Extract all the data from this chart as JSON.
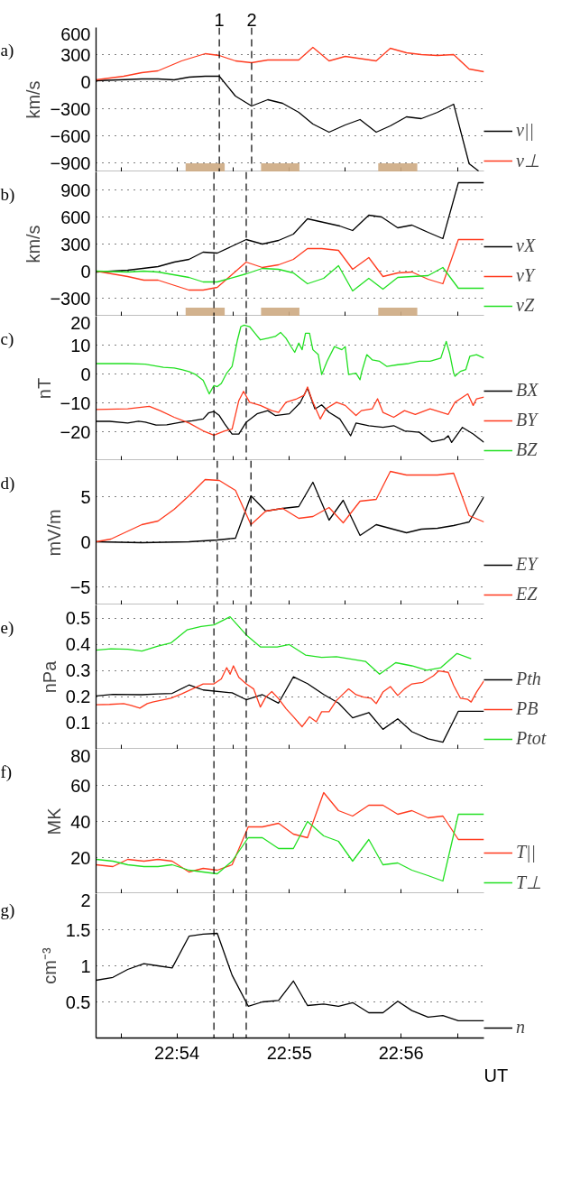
{
  "chart_data": [
    {
      "type": "line",
      "title": "a)",
      "ylabel": "km/s",
      "xlim": [
        22.888,
        22.9456
      ],
      "ylim": [
        -1000,
        600
      ],
      "yticks": [
        600,
        300,
        0,
        -300,
        -600,
        -900
      ],
      "xticks": [
        {
          "value": 22.8917,
          "label": null
        },
        {
          "value": 22.9,
          "label": null
        },
        {
          "value": 22.9083,
          "label": null
        },
        {
          "value": 22.9167,
          "label": null
        },
        {
          "value": 22.925,
          "label": null
        },
        {
          "value": 22.9333,
          "label": null
        },
        {
          "value": 22.9417,
          "label": null
        }
      ],
      "tick_labels": "y",
      "grid": "y",
      "legend": "right",
      "series": [
        {
          "name": "v||",
          "color": "#000000",
          "x": [
            22.888,
            22.8948,
            22.8972,
            22.8996,
            22.9018,
            22.9042,
            22.9063,
            22.9087,
            22.9111,
            22.9135,
            22.9157,
            22.9181,
            22.9202,
            22.9226,
            22.925,
            22.9272,
            22.9296,
            22.9317,
            22.9341,
            22.9363,
            22.9387,
            22.9411,
            22.9434,
            22.9448
          ],
          "values": [
            10,
            30,
            30,
            20,
            50,
            60,
            60,
            -160,
            -270,
            -200,
            -240,
            -340,
            -470,
            -560,
            -480,
            -420,
            -560,
            -490,
            -390,
            -410,
            -340,
            -250,
            -910,
            -990
          ]
        },
        {
          "name": "v⊥",
          "color": "#ff3b1f",
          "x": [
            22.888,
            22.8921,
            22.8948,
            22.8972,
            22.9007,
            22.9042,
            22.9063,
            22.9087,
            22.9111,
            22.9135,
            22.9157,
            22.9181,
            22.9202,
            22.9226,
            22.925,
            22.9296,
            22.9317,
            22.9341,
            22.9363,
            22.9387,
            22.9411,
            22.9434,
            22.9456
          ],
          "values": [
            20,
            60,
            100,
            120,
            230,
            310,
            290,
            230,
            210,
            240,
            240,
            240,
            380,
            230,
            280,
            230,
            370,
            320,
            300,
            290,
            300,
            140,
            110
          ]
        }
      ],
      "ref_lines": [
        {
          "axis": "x",
          "value": 22.9063,
          "line_style": "dashed"
        },
        {
          "axis": "x",
          "value": 22.9111,
          "line_style": "dashed"
        }
      ],
      "annotations": [
        "1",
        "2"
      ],
      "bands": [
        {
          "axis": "x",
          "from": 22.9013,
          "to": 22.9071,
          "color": "#cdaa82"
        },
        {
          "axis": "x",
          "from": 22.9125,
          "to": 22.9182,
          "color": "#cdaa82"
        },
        {
          "axis": "x",
          "from": 22.9299,
          "to": 22.9357,
          "color": "#cdaa82"
        }
      ]
    },
    {
      "type": "line",
      "title": "b)",
      "ylabel": "km/s",
      "xlim": [
        22.888,
        22.9456
      ],
      "ylim": [
        -500,
        1100
      ],
      "yticks": [
        900,
        600,
        300,
        0,
        -300
      ],
      "xticks": [
        {
          "value": 22.8917,
          "label": null
        },
        {
          "value": 22.9,
          "label": null
        },
        {
          "value": 22.9083,
          "label": null
        },
        {
          "value": 22.9167,
          "label": null
        },
        {
          "value": 22.925,
          "label": null
        },
        {
          "value": 22.9333,
          "label": null
        },
        {
          "value": 22.9417,
          "label": null
        }
      ],
      "tick_labels": "y",
      "grid": "y",
      "legend": "right",
      "series": [
        {
          "name": "vX",
          "color": "#000000",
          "x": [
            22.888,
            22.8927,
            22.8972,
            22.8996,
            22.9018,
            22.9039,
            22.906,
            22.9103,
            22.9127,
            22.9151,
            22.9173,
            22.9194,
            22.9218,
            22.9242,
            22.9261,
            22.9285,
            22.9304,
            22.9328,
            22.9349,
            22.9373,
            22.9395,
            22.9418,
            22.9456
          ],
          "values": [
            -10,
            10,
            50,
            100,
            130,
            210,
            200,
            350,
            300,
            340,
            410,
            580,
            540,
            500,
            450,
            620,
            600,
            480,
            510,
            430,
            360,
            980,
            980
          ]
        },
        {
          "name": "vY",
          "color": "#ff3b1f",
          "x": [
            22.888,
            22.8927,
            22.8951,
            22.8972,
            22.9018,
            22.9039,
            22.906,
            22.9103,
            22.9127,
            22.9151,
            22.9173,
            22.9194,
            22.9215,
            22.924,
            22.9261,
            22.9285,
            22.9306,
            22.9328,
            22.9349,
            22.9373,
            22.9395,
            22.9418,
            22.9456
          ],
          "values": [
            0,
            -60,
            -100,
            -100,
            -210,
            -210,
            -180,
            100,
            40,
            70,
            130,
            250,
            250,
            230,
            20,
            150,
            -60,
            -20,
            -10,
            -90,
            -140,
            350,
            350
          ]
        },
        {
          "name": "vZ",
          "color": "#22e022",
          "x": [
            22.888,
            22.8927,
            22.8951,
            22.8972,
            22.9018,
            22.9039,
            22.906,
            22.9103,
            22.9127,
            22.9151,
            22.9173,
            22.9194,
            22.9218,
            22.924,
            22.9261,
            22.9285,
            22.9306,
            22.9328,
            22.9349,
            22.9373,
            22.9395,
            22.9418,
            22.9456
          ],
          "values": [
            0,
            -10,
            0,
            -10,
            -70,
            -120,
            -120,
            -30,
            30,
            20,
            -20,
            -140,
            -80,
            60,
            -220,
            -80,
            -200,
            -70,
            -60,
            -50,
            40,
            -190,
            -190
          ]
        }
      ],
      "ref_lines": [
        {
          "axis": "x",
          "value": 22.9055,
          "line_style": "dashed"
        },
        {
          "axis": "x",
          "value": 22.9103,
          "line_style": "dashed"
        }
      ],
      "bands": [
        {
          "axis": "x",
          "from": 22.9013,
          "to": 22.9071,
          "color": "#cdaa82"
        },
        {
          "axis": "x",
          "from": 22.9125,
          "to": 22.9182,
          "color": "#cdaa82"
        },
        {
          "axis": "x",
          "from": 22.9299,
          "to": 22.9357,
          "color": "#cdaa82"
        }
      ]
    },
    {
      "type": "line",
      "title": "c)",
      "ylabel": "nT",
      "xlim": [
        22.888,
        22.9456
      ],
      "ylim": [
        -30,
        20
      ],
      "yticks": [
        20,
        10,
        0,
        -10,
        -20
      ],
      "xticks": [
        {
          "value": 22.8917,
          "label": null
        },
        {
          "value": 22.9,
          "label": null
        },
        {
          "value": 22.9083,
          "label": null
        },
        {
          "value": 22.9167,
          "label": null
        },
        {
          "value": 22.925,
          "label": null
        },
        {
          "value": 22.9333,
          "label": null
        },
        {
          "value": 22.9417,
          "label": null
        }
      ],
      "tick_labels": "y",
      "grid": "y",
      "legend": "right",
      "series": [
        {
          "name": "BX",
          "color": "#000000",
          "x": [
            22.888,
            22.89,
            22.8927,
            22.8943,
            22.8953,
            22.8969,
            22.8985,
            22.9007,
            22.9023,
            22.9039,
            22.9047,
            22.9055,
            22.9063,
            22.9071,
            22.9082,
            22.9092,
            22.9103,
            22.9119,
            22.9135,
            22.9146,
            22.9167,
            22.9183,
            22.9194,
            22.9205,
            22.9215,
            22.9226,
            22.9242,
            22.9258,
            22.9266,
            22.9285,
            22.9306,
            22.9322,
            22.9338,
            22.936,
            22.9379,
            22.9397,
            22.9403,
            22.9408,
            22.9424,
            22.944,
            22.9456
          ],
          "values": [
            -16.4,
            -16.4,
            -17,
            -16.4,
            -16.7,
            -17.7,
            -17.6,
            -16.7,
            -16.2,
            -15.6,
            -13.5,
            -13,
            -14.4,
            -17.3,
            -20.8,
            -20.8,
            -16.7,
            -13.8,
            -12.7,
            -14.4,
            -13.8,
            -10,
            -4.9,
            -12.1,
            -10.7,
            -13.3,
            -15.6,
            -21.4,
            -17,
            -17.9,
            -18.5,
            -17.9,
            -19.7,
            -20.2,
            -23.5,
            -22.6,
            -21.4,
            -23.7,
            -18.5,
            -20.8,
            -23.7
          ]
        },
        {
          "name": "BY",
          "color": "#ff3b1f",
          "x": [
            22.888,
            22.8927,
            22.8959,
            22.8975,
            22.8996,
            22.9018,
            22.9039,
            22.9055,
            22.9071,
            22.9082,
            22.9092,
            22.9099,
            22.9108,
            22.9124,
            22.9141,
            22.9151,
            22.9162,
            22.9178,
            22.9189,
            22.9194,
            22.9202,
            22.9213,
            22.9221,
            22.9237,
            22.925,
            22.9266,
            22.9274,
            22.929,
            22.9298,
            22.9306,
            22.9322,
            22.9338,
            22.9354,
            22.9376,
            22.9403,
            22.9413,
            22.9432,
            22.944,
            22.9445,
            22.9456
          ],
          "values": [
            -12.3,
            -12.1,
            -11.2,
            -12.7,
            -15,
            -17,
            -19.7,
            -21.2,
            -19.7,
            -19.1,
            -9.2,
            -6,
            -9.8,
            -10.9,
            -12.7,
            -13.3,
            -9.8,
            -8.6,
            -7.4,
            -4.5,
            -9.8,
            -15.6,
            -12.1,
            -9.8,
            -10.9,
            -14.4,
            -12.7,
            -12.1,
            -8.6,
            -13.3,
            -15,
            -12.7,
            -14,
            -12.1,
            -14,
            -9.8,
            -6.9,
            -10.9,
            -8.6,
            -8
          ]
        },
        {
          "name": "BZ",
          "color": "#22e022",
          "x": [
            22.888,
            22.8927,
            22.8953,
            22.898,
            22.8996,
            22.9007,
            22.9018,
            22.9028,
            22.9039,
            22.9048,
            22.9055,
            22.906,
            22.9066,
            22.9074,
            22.9082,
            22.909,
            22.9095,
            22.91,
            22.9108,
            22.9116,
            22.9124,
            22.9135,
            22.9146,
            22.9154,
            22.9162,
            22.917,
            22.9175,
            22.9181,
            22.9186,
            22.9191,
            22.9197,
            22.9202,
            22.921,
            22.9215,
            22.9223,
            22.9234,
            22.9245,
            22.925,
            22.9255,
            22.9266,
            22.9272,
            22.9274,
            22.9282,
            22.929,
            22.9301,
            22.9312,
            22.9328,
            22.9344,
            22.936,
            22.9376,
            22.9392,
            22.94,
            22.9405,
            22.9411,
            22.9413,
            22.9421,
            22.9429,
            22.9435,
            22.9445,
            22.9456
          ],
          "values": [
            3.6,
            3.6,
            3.4,
            2.3,
            2.1,
            1.5,
            0.8,
            -0.2,
            -2.2,
            -6.9,
            -4,
            -4.4,
            -3.3,
            0.3,
            2.6,
            11.8,
            16.4,
            16.9,
            16.4,
            14.1,
            11.8,
            12.4,
            13,
            14.4,
            12.4,
            9.3,
            7.5,
            10.7,
            8.4,
            14.1,
            14.1,
            8.4,
            6.7,
            -0.2,
            4.4,
            9.5,
            8.4,
            9.5,
            -0.2,
            0.3,
            -2,
            0.3,
            6.7,
            4.9,
            4.4,
            2.6,
            3.2,
            3.6,
            4.4,
            4.4,
            5.5,
            11.3,
            7.2,
            0.3,
            -0.8,
            0.9,
            1.5,
            6.1,
            6.7,
            5.5
          ]
        }
      ],
      "ref_lines": [
        {
          "axis": "x",
          "value": 22.9055,
          "line_style": "dashed"
        },
        {
          "axis": "x",
          "value": 22.9103,
          "line_style": "dashed"
        }
      ]
    },
    {
      "type": "line",
      "title": "d)",
      "ylabel": "mV/m",
      "xlim": [
        22.888,
        22.9456
      ],
      "ylim": [
        -7,
        9
      ],
      "yticks": [
        5,
        0,
        -5
      ],
      "xticks": [
        {
          "value": 22.8917,
          "label": null
        },
        {
          "value": 22.9,
          "label": null
        },
        {
          "value": 22.9083,
          "label": null
        },
        {
          "value": 22.9167,
          "label": null
        },
        {
          "value": 22.925,
          "label": null
        },
        {
          "value": 22.9333,
          "label": null
        },
        {
          "value": 22.9417,
          "label": null
        }
      ],
      "tick_labels": "y",
      "grid": "y",
      "legend": "right",
      "series": [
        {
          "name": "EY",
          "color": "#000000",
          "x": [
            22.888,
            22.8948,
            22.9018,
            22.906,
            22.9087,
            22.911,
            22.9132,
            22.9157,
            22.9181,
            22.9202,
            22.9226,
            22.9247,
            22.9272,
            22.9296,
            22.9341,
            22.9363,
            22.9387,
            22.9411,
            22.9434,
            22.9456
          ],
          "values": [
            0,
            -0.1,
            0,
            0.2,
            0.4,
            5.1,
            3.4,
            3.7,
            3.9,
            6.6,
            2.4,
            4.6,
            0.7,
            1.9,
            1,
            1.4,
            1.5,
            1.8,
            2.2,
            5
          ]
        },
        {
          "name": "EZ",
          "color": "#ff3b1f",
          "x": [
            22.888,
            22.8902,
            22.8948,
            22.8972,
            22.8996,
            22.9018,
            22.9042,
            22.9063,
            22.9087,
            22.911,
            22.9132,
            22.9157,
            22.9181,
            22.9202,
            22.9226,
            22.9247,
            22.9272,
            22.9296,
            22.9317,
            22.9341,
            22.9363,
            22.9387,
            22.9411,
            22.9434,
            22.9456
          ],
          "values": [
            0,
            0.3,
            1.9,
            2.3,
            3.6,
            5.1,
            6.9,
            6.8,
            5.7,
            1.9,
            3.4,
            3.7,
            2.6,
            2.8,
            3.8,
            2.1,
            4.5,
            4.7,
            7.8,
            7.4,
            7.4,
            7.4,
            7.6,
            2.9,
            2.2
          ]
        }
      ],
      "ref_lines": [
        {
          "axis": "x",
          "value": 22.906,
          "line_style": "dashed"
        },
        {
          "axis": "x",
          "value": 22.911,
          "line_style": "dashed"
        }
      ]
    },
    {
      "type": "line",
      "title": "e)",
      "ylabel": "nPa",
      "xlim": [
        22.888,
        22.9456
      ],
      "ylim": [
        0,
        0.55
      ],
      "yticks": [
        0.5,
        0.4,
        0.3,
        0.2,
        0.1
      ],
      "xticks": [
        {
          "value": 22.8917,
          "label": null
        },
        {
          "value": 22.9,
          "label": null
        },
        {
          "value": 22.9083,
          "label": null
        },
        {
          "value": 22.9167,
          "label": null
        },
        {
          "value": 22.925,
          "label": null
        },
        {
          "value": 22.9333,
          "label": null
        },
        {
          "value": 22.9417,
          "label": null
        }
      ],
      "tick_labels": "y",
      "grid": "y",
      "legend": "right",
      "series": [
        {
          "name": "Pth",
          "color": "#000000",
          "x": [
            22.888,
            22.8905,
            22.8948,
            22.8972,
            22.8993,
            22.9018,
            22.9039,
            22.9082,
            22.9103,
            22.9127,
            22.9151,
            22.9173,
            22.9194,
            22.9218,
            22.924,
            22.9261,
            22.9285,
            22.9306,
            22.9328,
            22.9349,
            22.9373,
            22.9395,
            22.9418,
            22.9456
          ],
          "values": [
            0.203,
            0.209,
            0.208,
            0.211,
            0.213,
            0.245,
            0.226,
            0.215,
            0.189,
            0.208,
            0.176,
            0.276,
            0.25,
            0.209,
            0.176,
            0.12,
            0.14,
            0.076,
            0.116,
            0.067,
            0.04,
            0.027,
            0.145,
            0.145
          ]
        },
        {
          "name": "PB",
          "color": "#ff3b1f",
          "x": [
            22.888,
            22.89,
            22.8921,
            22.8932,
            22.8945,
            22.8956,
            22.8964,
            22.8975,
            22.8991,
            22.9007,
            22.9023,
            22.9039,
            22.9055,
            22.9066,
            22.9074,
            22.9079,
            22.9084,
            22.9092,
            22.9103,
            22.9114,
            22.9124,
            22.9132,
            22.9141,
            22.9151,
            22.9162,
            22.9173,
            22.9186,
            22.9197,
            22.9207,
            22.9215,
            22.9226,
            22.9237,
            22.9247,
            22.9255,
            22.9266,
            22.9277,
            22.9288,
            22.9296,
            22.9306,
            22.9317,
            22.9328,
            22.9338,
            22.9349,
            22.9365,
            22.9381,
            22.9389,
            22.9403,
            22.9411,
            22.9421,
            22.9432,
            22.9437,
            22.9445,
            22.9456
          ],
          "values": [
            0.17,
            0.171,
            0.174,
            0.167,
            0.157,
            0.174,
            0.18,
            0.186,
            0.195,
            0.211,
            0.23,
            0.249,
            0.249,
            0.268,
            0.311,
            0.286,
            0.318,
            0.274,
            0.249,
            0.23,
            0.161,
            0.199,
            0.22,
            0.193,
            0.155,
            0.124,
            0.086,
            0.124,
            0.105,
            0.143,
            0.143,
            0.186,
            0.211,
            0.23,
            0.208,
            0.199,
            0.195,
            0.174,
            0.218,
            0.239,
            0.205,
            0.23,
            0.249,
            0.255,
            0.28,
            0.299,
            0.293,
            0.243,
            0.195,
            0.19,
            0.18,
            0.218,
            0.261
          ]
        },
        {
          "name": "Ptot",
          "color": "#22e022",
          "x": [
            22.888,
            22.8902,
            22.8927,
            22.8948,
            22.8972,
            22.8991,
            22.9015,
            22.9036,
            22.9055,
            22.9079,
            22.9103,
            22.9124,
            22.9149,
            22.9167,
            22.9191,
            22.9215,
            22.9237,
            22.928,
            22.9301,
            22.9325,
            22.9349,
            22.9371,
            22.9392,
            22.9416,
            22.9437
          ],
          "values": [
            0.378,
            0.383,
            0.381,
            0.374,
            0.393,
            0.405,
            0.455,
            0.468,
            0.474,
            0.505,
            0.436,
            0.39,
            0.39,
            0.399,
            0.359,
            0.35,
            0.353,
            0.335,
            0.286,
            0.33,
            0.318,
            0.301,
            0.311,
            0.365,
            0.345
          ]
        }
      ],
      "ref_lines": [
        {
          "axis": "x",
          "value": 22.9055,
          "line_style": "dashed"
        },
        {
          "axis": "x",
          "value": 22.9103,
          "line_style": "dashed"
        }
      ]
    },
    {
      "type": "line",
      "title": "f)",
      "ylabel": "MK",
      "xlim": [
        22.888,
        22.9456
      ],
      "ylim": [
        0,
        80
      ],
      "yticks": [
        80,
        60,
        40,
        20
      ],
      "xticks": [
        {
          "value": 22.8917,
          "label": null
        },
        {
          "value": 22.9,
          "label": null
        },
        {
          "value": 22.9083,
          "label": null
        },
        {
          "value": 22.9167,
          "label": null
        },
        {
          "value": 22.925,
          "label": null
        },
        {
          "value": 22.9333,
          "label": null
        },
        {
          "value": 22.9417,
          "label": null
        }
      ],
      "tick_labels": "y",
      "grid": "y",
      "legend": "right",
      "x": [
        22.888,
        22.8905,
        22.8927,
        22.8951,
        22.8972,
        22.8993,
        22.9018,
        22.9039,
        22.906,
        22.9082,
        22.9106,
        22.9127,
        22.9151,
        22.9173,
        22.9194,
        22.9218,
        22.924,
        22.9261,
        22.9285,
        22.9306,
        22.9328,
        22.9349,
        22.9373,
        22.9395,
        22.9418,
        22.9456
      ],
      "series": [
        {
          "name": "T||",
          "color": "#ff3b1f",
          "values": [
            16,
            15,
            19,
            18,
            19,
            18,
            12,
            14,
            13,
            16,
            37,
            37,
            39,
            33,
            31,
            56,
            46,
            43,
            49,
            49,
            44,
            46,
            42,
            43,
            30,
            30
          ]
        },
        {
          "name": "T⊥",
          "color": "#22e022",
          "values": [
            19,
            18,
            16,
            15,
            15,
            16,
            13,
            12,
            11,
            18,
            31,
            31,
            25,
            25,
            40,
            32,
            29,
            18,
            30,
            16,
            17,
            13,
            10,
            7,
            44,
            44
          ]
        }
      ],
      "ref_lines": [
        {
          "axis": "x",
          "value": 22.9055,
          "line_style": "dashed"
        },
        {
          "axis": "x",
          "value": 22.9103,
          "line_style": "dashed"
        }
      ]
    },
    {
      "type": "line",
      "title": "g)",
      "ylabel": "cm⁻³",
      "xlabel": "UT",
      "xlim": [
        22.888,
        22.9456
      ],
      "ylim": [
        0,
        2
      ],
      "yticks": [
        2,
        1.5,
        1,
        0.5
      ],
      "xticks": [
        {
          "value": 22.8917,
          "label": null
        },
        {
          "value": 22.9,
          "label": "22:54"
        },
        {
          "value": 22.9083,
          "label": null
        },
        {
          "value": 22.9167,
          "label": "22:55"
        },
        {
          "value": 22.925,
          "label": null
        },
        {
          "value": 22.9333,
          "label": "22:56"
        },
        {
          "value": 22.9417,
          "label": null
        }
      ],
      "grid": "y",
      "legend": "right",
      "x": [
        22.888,
        22.8905,
        22.8927,
        22.8951,
        22.8972,
        22.8993,
        22.9018,
        22.9039,
        22.906,
        22.9082,
        22.9106,
        22.9127,
        22.9151,
        22.9173,
        22.9194,
        22.9218,
        22.924,
        22.9261,
        22.9285,
        22.9306,
        22.9328,
        22.9349,
        22.9373,
        22.9395,
        22.9418,
        22.9456
      ],
      "series": [
        {
          "name": "n",
          "color": "#000000",
          "values": [
            0.8,
            0.84,
            0.95,
            1.03,
            1.0,
            0.97,
            1.41,
            1.44,
            1.45,
            0.87,
            0.44,
            0.5,
            0.52,
            0.79,
            0.45,
            0.47,
            0.44,
            0.49,
            0.35,
            0.35,
            0.51,
            0.38,
            0.29,
            0.31,
            0.24,
            0.24
          ]
        }
      ],
      "ref_lines": [
        {
          "axis": "x",
          "value": 22.9055,
          "line_style": "dashed"
        },
        {
          "axis": "x",
          "value": 22.9103,
          "line_style": "dashed"
        }
      ]
    }
  ]
}
